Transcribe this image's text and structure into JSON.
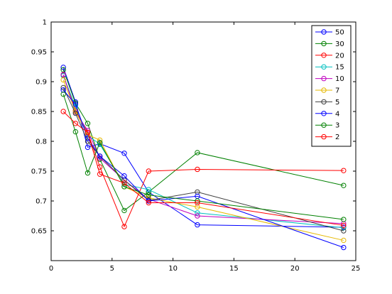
{
  "chart_data": {
    "type": "line",
    "title": "",
    "xlabel": "",
    "ylabel": "",
    "xlim": [
      0,
      25
    ],
    "ylim": [
      0.6,
      1.0
    ],
    "x_ticks": [
      "0",
      "5",
      "10",
      "15",
      "20",
      "25"
    ],
    "y_ticks": [
      "0.65",
      "0.7",
      "0.75",
      "0.8",
      "0.85",
      "0.9",
      "0.95",
      "1"
    ],
    "x_tick_values": [
      0,
      5,
      10,
      15,
      20,
      25
    ],
    "y_tick_values": [
      0.65,
      0.7,
      0.75,
      0.8,
      0.85,
      0.9,
      0.95,
      1.0
    ],
    "grid": false,
    "legend_position": "top-right",
    "x": [
      1,
      2,
      3,
      4,
      6,
      8,
      12,
      24
    ],
    "series": [
      {
        "name": "50",
        "color": "#0000ff",
        "values": [
          0.924,
          0.866,
          0.79,
          0.796,
          0.78,
          0.715,
          0.66,
          0.656
        ]
      },
      {
        "name": "30",
        "color": "#008000",
        "values": [
          0.92,
          0.864,
          0.83,
          0.77,
          0.684,
          0.715,
          0.781,
          0.726
        ]
      },
      {
        "name": "20",
        "color": "#ff0000",
        "values": [
          0.911,
          0.852,
          0.815,
          0.757,
          0.657,
          0.75,
          0.753,
          0.751
        ]
      },
      {
        "name": "15",
        "color": "#00bfbf",
        "values": [
          0.91,
          0.858,
          0.81,
          0.795,
          0.728,
          0.719,
          0.68,
          0.655
        ]
      },
      {
        "name": "10",
        "color": "#bf00bf",
        "values": [
          0.912,
          0.849,
          0.818,
          0.772,
          0.735,
          0.703,
          0.675,
          0.662
        ]
      },
      {
        "name": "7",
        "color": "#e6b800",
        "values": [
          0.903,
          0.85,
          0.811,
          0.802,
          0.724,
          0.705,
          0.69,
          0.634
        ]
      },
      {
        "name": "5",
        "color": "#404040",
        "values": [
          0.89,
          0.847,
          0.8,
          0.775,
          0.735,
          0.701,
          0.715,
          0.65
        ]
      },
      {
        "name": "4",
        "color": "#0000ff",
        "values": [
          0.886,
          0.862,
          0.805,
          0.775,
          0.742,
          0.7,
          0.708,
          0.622
        ]
      },
      {
        "name": "3",
        "color": "#008000",
        "values": [
          0.879,
          0.816,
          0.747,
          0.798,
          0.724,
          0.71,
          0.7,
          0.669
        ]
      },
      {
        "name": "2",
        "color": "#ff0000",
        "values": [
          0.85,
          0.83,
          0.815,
          0.745,
          0.73,
          0.697,
          0.697,
          0.659
        ]
      }
    ]
  }
}
